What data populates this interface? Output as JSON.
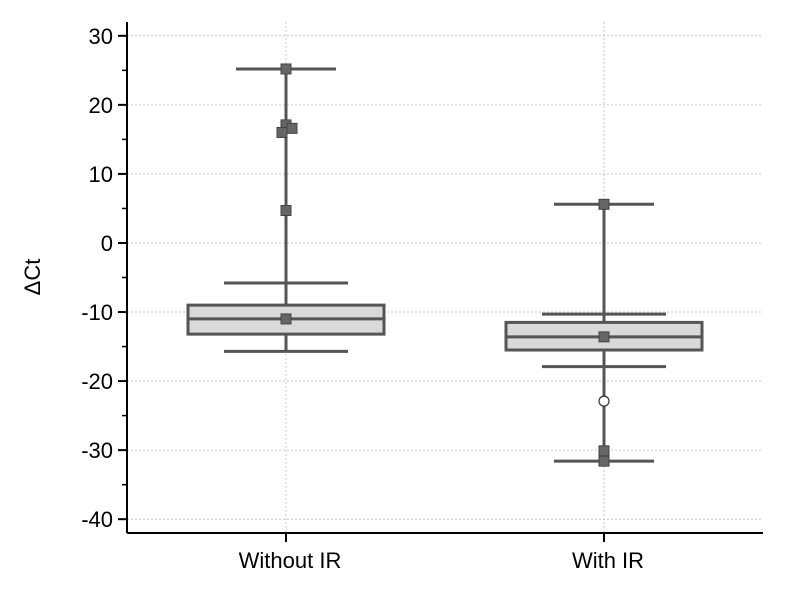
{
  "chart_data": {
    "type": "box",
    "ylabel": "ΔCt",
    "ylim": [
      -42,
      32
    ],
    "yticks": [
      30,
      20,
      10,
      0,
      -10,
      -20,
      -30,
      -40
    ],
    "ytick_labels": [
      "30",
      "20",
      "10",
      "0",
      "-10",
      "-20",
      "-30",
      "-40"
    ],
    "categories": [
      "Without IR",
      "With IR"
    ],
    "grid": true,
    "colors": {
      "box_fill": "#d9d9d9",
      "line": "#555555",
      "marker": "#666666",
      "grid": "#bbbbbb"
    },
    "boxes": [
      {
        "category": "Without IR",
        "q1": -13.2,
        "median": -11.0,
        "q3": -9.0,
        "mean": -11.0,
        "whisker_low": -15.7,
        "whisker_high": -5.8,
        "outer_fence_high": 25.2,
        "outliers": [
          25.2,
          17.1,
          16.6,
          16.0,
          4.7
        ],
        "open_outliers": []
      },
      {
        "category": "With IR",
        "q1": -15.5,
        "median": -13.6,
        "q3": -11.5,
        "mean": -13.6,
        "whisker_low": -17.9,
        "whisker_high": -10.3,
        "outer_fence_low": -31.6,
        "outer_fence_high": 5.6,
        "outliers": [
          5.6,
          -30.1,
          -31.6
        ],
        "open_outliers": [
          -22.9
        ]
      }
    ]
  }
}
